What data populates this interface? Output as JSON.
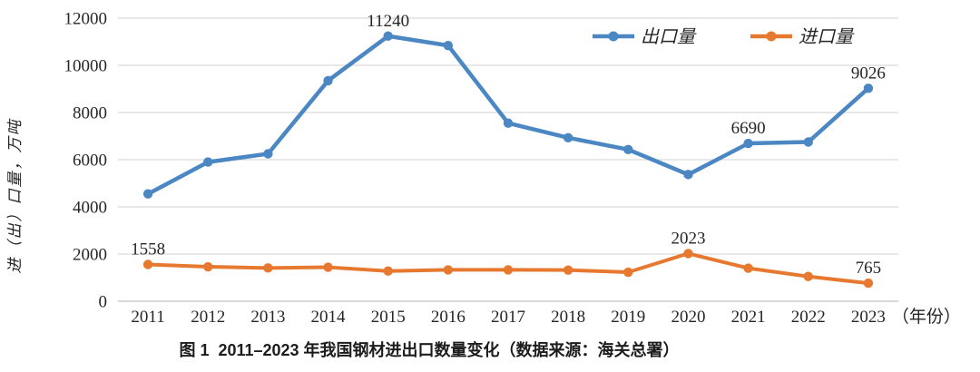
{
  "figure": {
    "caption": "图 1  2011–2023 年我国钢材进出口数量变化（数据来源：海关总署）",
    "y_axis_title": "进（出）口量，万吨",
    "x_axis_unit": "（年份）"
  },
  "chart_data": {
    "type": "line",
    "title": "",
    "categories": [
      "2011",
      "2012",
      "2013",
      "2014",
      "2015",
      "2016",
      "2017",
      "2018",
      "2019",
      "2020",
      "2021",
      "2022",
      "2023"
    ],
    "series": [
      {
        "name": "出口量",
        "color": "#4a87c3",
        "values": [
          4550,
          5900,
          6250,
          9350,
          11240,
          10840,
          7550,
          6930,
          6430,
          5370,
          6690,
          6750,
          9026
        ]
      },
      {
        "name": "进口量",
        "color": "#e6792f",
        "values": [
          1558,
          1460,
          1410,
          1440,
          1280,
          1330,
          1330,
          1320,
          1230,
          2023,
          1400,
          1050,
          765
        ]
      }
    ],
    "point_labels": [
      {
        "series": 0,
        "category": "2015",
        "text": "11240"
      },
      {
        "series": 0,
        "category": "2021",
        "text": "6690"
      },
      {
        "series": 0,
        "category": "2023",
        "text": "9026"
      },
      {
        "series": 1,
        "category": "2011",
        "text": "1558"
      },
      {
        "series": 1,
        "category": "2020",
        "text": "2023"
      },
      {
        "series": 1,
        "category": "2023",
        "text": "765"
      }
    ],
    "xlabel": "年份",
    "ylabel": "进（出）口量，万吨",
    "ylim": [
      0,
      12000
    ],
    "yticks": [
      0,
      2000,
      4000,
      6000,
      8000,
      10000,
      12000
    ],
    "grid": true,
    "legend_position": "top-right",
    "colors": {
      "grid": "#d9d9d9",
      "zero_axis": "#c0c0c0",
      "text": "#262626",
      "background": "#ffffff"
    }
  }
}
